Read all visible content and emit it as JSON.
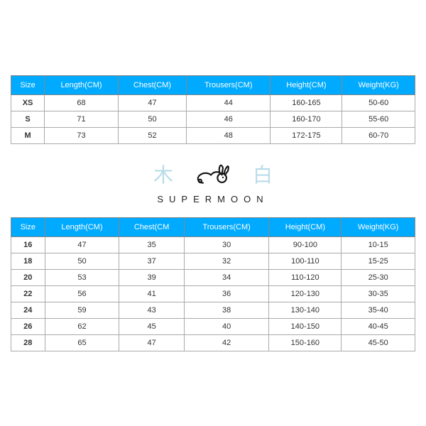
{
  "header_bg": "#00aaff",
  "header_text_color": "#ffffff",
  "border_color": "#888888",
  "cjk_color": "#b8dce8",
  "brand": {
    "left_char": "木",
    "right_char": "白",
    "name": "SUPERMOON"
  },
  "table_adult": {
    "columns": [
      "Size",
      "Length(CM)",
      "Chest(CM)",
      "Trousers(CM)",
      "Height(CM)",
      "Weight(KG)"
    ],
    "rows": [
      [
        "XS",
        "68",
        "47",
        "44",
        "160-165",
        "50-60"
      ],
      [
        "S",
        "71",
        "50",
        "46",
        "160-170",
        "55-60"
      ],
      [
        "M",
        "73",
        "52",
        "48",
        "172-175",
        "60-70"
      ]
    ]
  },
  "table_kids": {
    "columns": [
      "Size",
      "Length(CM)",
      "Chest(CM",
      "Trousers(CM)",
      "Height(CM)",
      "Weight(KG)"
    ],
    "rows": [
      [
        "16",
        "47",
        "35",
        "30",
        "90-100",
        "10-15"
      ],
      [
        "18",
        "50",
        "37",
        "32",
        "100-110",
        "15-25"
      ],
      [
        "20",
        "53",
        "39",
        "34",
        "110-120",
        "25-30"
      ],
      [
        "22",
        "56",
        "41",
        "36",
        "120-130",
        "30-35"
      ],
      [
        "24",
        "59",
        "43",
        "38",
        "130-140",
        "35-40"
      ],
      [
        "26",
        "62",
        "45",
        "40",
        "140-150",
        "40-45"
      ],
      [
        "28",
        "65",
        "47",
        "42",
        "150-160",
        "45-50"
      ]
    ]
  }
}
